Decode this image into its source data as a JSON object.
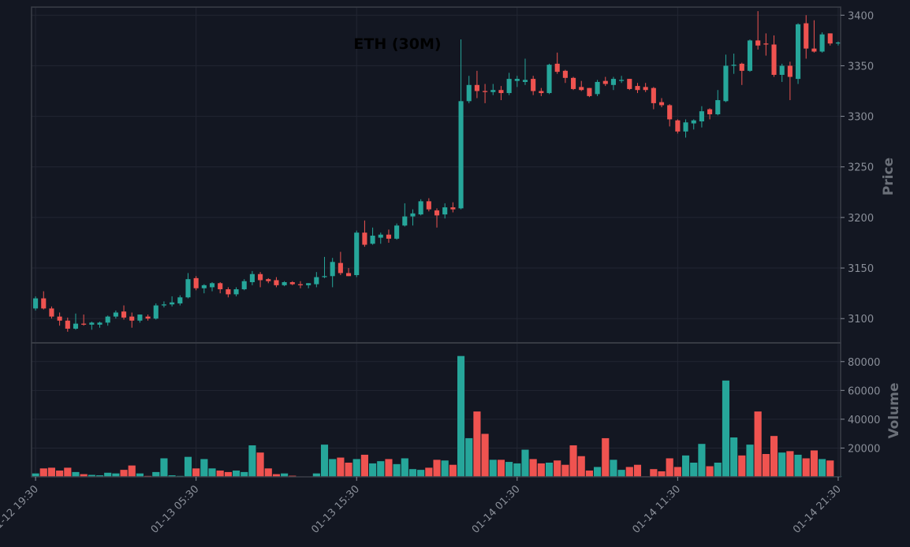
{
  "colors": {
    "background": "#131722",
    "frame": "#3b3f48",
    "grid": "#222633",
    "up": "#26a69a",
    "down": "#ef5350",
    "tick": "#8a8f99",
    "axis_label": "#6b7079",
    "title": "#000000"
  },
  "chart_data": {
    "type": "candlestick",
    "title": "ETH (30M)",
    "price_panel": {
      "ylabel": "Price",
      "yticks": [
        3100,
        3150,
        3200,
        3250,
        3300,
        3350,
        3400
      ],
      "ylim": [
        3076,
        3408
      ],
      "grid": true
    },
    "volume_panel": {
      "ylabel": "Volume",
      "yticks": [
        20000,
        40000,
        60000,
        80000
      ],
      "ylim": [
        0,
        93000
      ],
      "grid": true
    },
    "xticks": [
      {
        "label": "01-12 19:30",
        "index": 0
      },
      {
        "label": "01-13 05:30",
        "index": 20
      },
      {
        "label": "01-13 15:30",
        "index": 40
      },
      {
        "label": "01-14 01:30",
        "index": 60
      },
      {
        "label": "01-14 11:30",
        "index": 80
      },
      {
        "label": "01-14 21:30",
        "index": 100
      }
    ],
    "xlim": [
      -0.5,
      100.3
    ],
    "candles": [
      [
        3110,
        3122,
        3108,
        3120,
        2500
      ],
      [
        3120,
        3127,
        3109,
        3110,
        6000
      ],
      [
        3110,
        3112,
        3100,
        3102,
        6500
      ],
      [
        3102,
        3106,
        3093,
        3098,
        4500
      ],
      [
        3098,
        3101,
        3087,
        3090,
        6500
      ],
      [
        3090,
        3105,
        3089,
        3095,
        3500
      ],
      [
        3095,
        3104,
        3093,
        3094,
        2000
      ],
      [
        3094,
        3097,
        3089,
        3096,
        1500
      ],
      [
        3094,
        3097,
        3091,
        3096,
        1200
      ],
      [
        3096,
        3103,
        3093,
        3102,
        3000
      ],
      [
        3102,
        3108,
        3100,
        3106,
        2500
      ],
      [
        3107,
        3113,
        3099,
        3101,
        5000
      ],
      [
        3102,
        3106,
        3091,
        3098,
        8000
      ],
      [
        3098,
        3104,
        3096,
        3104,
        2500
      ],
      [
        3102,
        3104,
        3098,
        3100,
        800
      ],
      [
        3100,
        3115,
        3099,
        3113,
        3500
      ],
      [
        3113,
        3117,
        3111,
        3114,
        13000
      ],
      [
        3114,
        3122,
        3112,
        3116,
        1200
      ],
      [
        3115,
        3123,
        3113,
        3121,
        800
      ],
      [
        3121,
        3145,
        3120,
        3139,
        14000
      ],
      [
        3140,
        3142,
        3128,
        3130,
        6000
      ],
      [
        3130,
        3134,
        3125,
        3133,
        12500
      ],
      [
        3131,
        3136,
        3127,
        3135,
        6000
      ],
      [
        3135,
        3136,
        3125,
        3129,
        4500
      ],
      [
        3129,
        3131,
        3121,
        3124,
        3500
      ],
      [
        3124,
        3131,
        3122,
        3129,
        4500
      ],
      [
        3129,
        3139,
        3128,
        3137,
        3500
      ],
      [
        3136,
        3147,
        3133,
        3144,
        22000
      ],
      [
        3144,
        3146,
        3131,
        3138,
        17000
      ],
      [
        3139,
        3140,
        3135,
        3137,
        6000
      ],
      [
        3138,
        3141,
        3131,
        3133,
        2000
      ],
      [
        3133,
        3137,
        3132,
        3136,
        2500
      ],
      [
        3136,
        3137,
        3133,
        3134,
        900
      ],
      [
        3134,
        3137,
        3130,
        3133,
        400
      ],
      [
        3133,
        3135,
        3130,
        3135,
        200
      ],
      [
        3134,
        3146,
        3131,
        3141,
        2500
      ],
      [
        3141,
        3161,
        3140,
        3142,
        22500
      ],
      [
        3142,
        3160,
        3131,
        3156,
        12500
      ],
      [
        3155,
        3166,
        3143,
        3145,
        13500
      ],
      [
        3145,
        3150,
        3142,
        3142,
        10000
      ],
      [
        3143,
        3187,
        3141,
        3185,
        12500
      ],
      [
        3185,
        3197,
        3171,
        3173,
        15500
      ],
      [
        3174,
        3190,
        3173,
        3182,
        9500
      ],
      [
        3180,
        3185,
        3174,
        3183,
        11000
      ],
      [
        3183,
        3188,
        3175,
        3179,
        12500
      ],
      [
        3179,
        3194,
        3178,
        3192,
        9000
      ],
      [
        3192,
        3214,
        3191,
        3201,
        13000
      ],
      [
        3201,
        3208,
        3192,
        3204,
        5500
      ],
      [
        3203,
        3218,
        3202,
        3216,
        5000
      ],
      [
        3216,
        3219,
        3206,
        3208,
        6500
      ],
      [
        3207,
        3209,
        3190,
        3202,
        12000
      ],
      [
        3203,
        3214,
        3199,
        3210,
        11500
      ],
      [
        3210,
        3215,
        3205,
        3208,
        8500
      ],
      [
        3209,
        3376,
        3208,
        3315,
        84000
      ],
      [
        3315,
        3340,
        3313,
        3331,
        27000
      ],
      [
        3331,
        3345,
        3318,
        3325,
        45500
      ],
      [
        3325,
        3332,
        3313,
        3324,
        30000
      ],
      [
        3324,
        3332,
        3321,
        3326,
        12000
      ],
      [
        3326,
        3330,
        3316,
        3323,
        12000
      ],
      [
        3323,
        3343,
        3321,
        3337,
        10500
      ],
      [
        3335,
        3340,
        3329,
        3337,
        9500
      ],
      [
        3334,
        3357,
        3331,
        3336,
        19000
      ],
      [
        3337,
        3340,
        3321,
        3325,
        12500
      ],
      [
        3325,
        3328,
        3320,
        3323,
        9500
      ],
      [
        3323,
        3352,
        3322,
        3351,
        10000
      ],
      [
        3352,
        3363,
        3342,
        3344,
        11500
      ],
      [
        3345,
        3346,
        3333,
        3338,
        8500
      ],
      [
        3338,
        3339,
        3326,
        3327,
        22000
      ],
      [
        3329,
        3335,
        3325,
        3326,
        14500
      ],
      [
        3328,
        3328,
        3319,
        3320,
        4500
      ],
      [
        3322,
        3336,
        3320,
        3334,
        7000
      ],
      [
        3335,
        3339,
        3330,
        3332,
        27000
      ],
      [
        3331,
        3339,
        3326,
        3337,
        12000
      ],
      [
        3335,
        3340,
        3333,
        3336,
        5000
      ],
      [
        3337,
        3337,
        3326,
        3327,
        7000
      ],
      [
        3330,
        3333,
        3323,
        3326,
        8500
      ],
      [
        3329,
        3333,
        3324,
        3326,
        500
      ],
      [
        3328,
        3329,
        3307,
        3313,
        5500
      ],
      [
        3314,
        3318,
        3309,
        3311,
        4000
      ],
      [
        3311,
        3312,
        3290,
        3297,
        13000
      ],
      [
        3296,
        3297,
        3283,
        3285,
        7000
      ],
      [
        3285,
        3297,
        3279,
        3294,
        15000
      ],
      [
        3293,
        3297,
        3287,
        3296,
        10000
      ],
      [
        3295,
        3310,
        3289,
        3305,
        23000
      ],
      [
        3307,
        3308,
        3297,
        3302,
        7500
      ],
      [
        3302,
        3326,
        3301,
        3316,
        10000
      ],
      [
        3315,
        3361,
        3314,
        3350,
        67000
      ],
      [
        3350,
        3362,
        3342,
        3351,
        27500
      ],
      [
        3352,
        3353,
        3331,
        3345,
        15000
      ],
      [
        3345,
        3376,
        3344,
        3375,
        22500
      ],
      [
        3375,
        3404,
        3366,
        3370,
        45500
      ],
      [
        3372,
        3382,
        3360,
        3371,
        16000
      ],
      [
        3371,
        3380,
        3339,
        3341,
        28500
      ],
      [
        3341,
        3352,
        3334,
        3350,
        17000
      ],
      [
        3350,
        3354,
        3316,
        3339,
        18000
      ],
      [
        3337,
        3392,
        3332,
        3391,
        15500
      ],
      [
        3392,
        3400,
        3357,
        3367,
        13000
      ],
      [
        3367,
        3395,
        3363,
        3364,
        18500
      ],
      [
        3364,
        3383,
        3363,
        3381,
        12500
      ],
      [
        3382,
        3382,
        3370,
        3372,
        11500
      ],
      [
        3372,
        3374,
        3370,
        3373,
        500
      ]
    ]
  }
}
